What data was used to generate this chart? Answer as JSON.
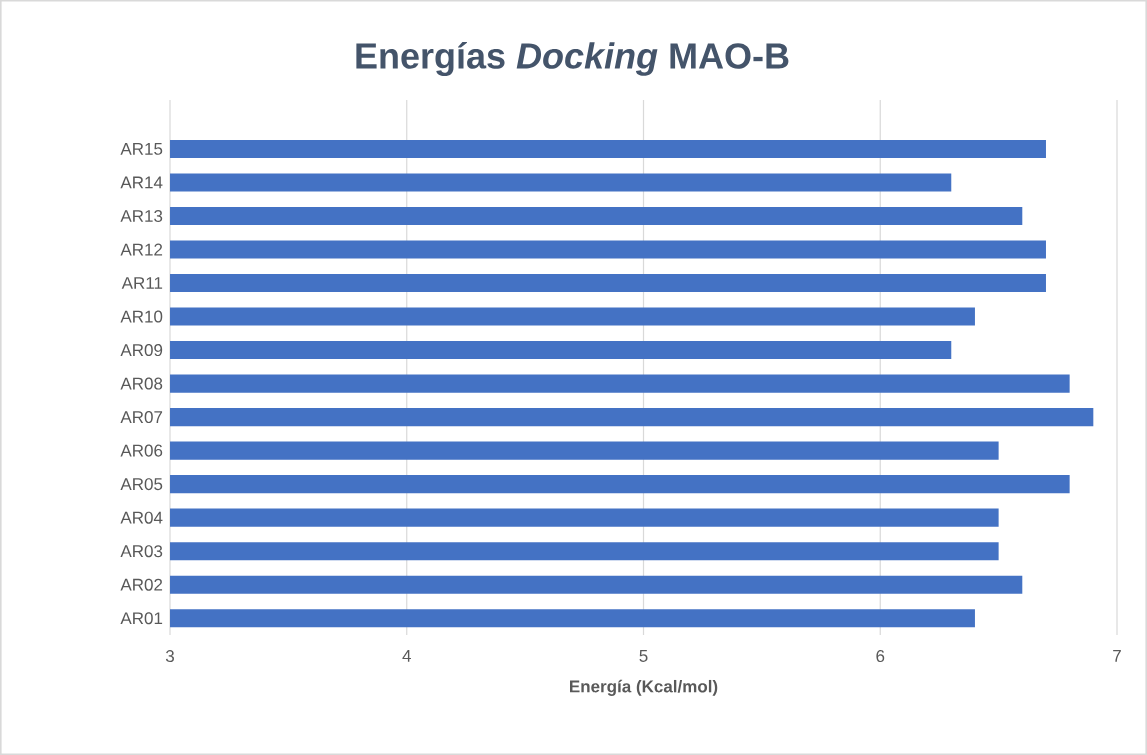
{
  "chart_data": {
    "type": "bar",
    "orientation": "horizontal",
    "title": "Energías *Docking* MAO-B",
    "xlabel": "Energía (Kcal/mol)",
    "categories": [
      "AR15",
      "AR14",
      "AR13",
      "AR12",
      "AR11",
      "AR10",
      "AR09",
      "AR08",
      "AR07",
      "AR06",
      "AR05",
      "AR04",
      "AR03",
      "AR02",
      "AR01"
    ],
    "values": [
      6.7,
      6.3,
      6.6,
      6.7,
      6.7,
      6.4,
      6.3,
      6.8,
      6.9,
      6.5,
      6.8,
      6.5,
      6.5,
      6.6,
      6.4
    ],
    "color": "#4472c4",
    "xlim": [
      3,
      7
    ],
    "xticks": [
      3,
      4,
      5,
      6,
      7
    ],
    "grid": "x"
  }
}
